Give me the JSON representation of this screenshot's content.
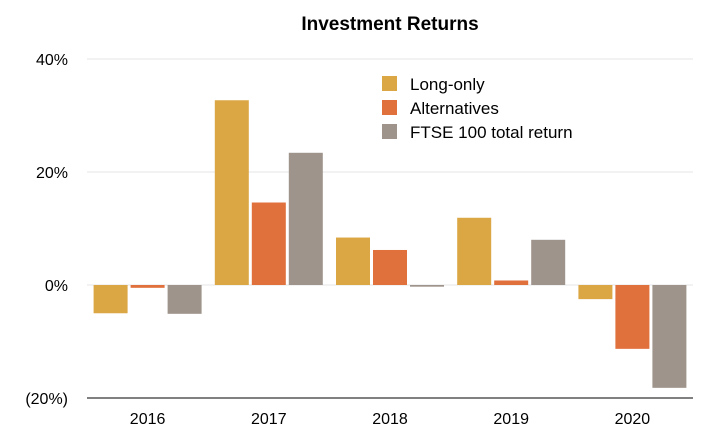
{
  "chart_data": {
    "type": "bar",
    "title": "Investment Returns",
    "xlabel": "",
    "ylabel": "",
    "categories": [
      "2016",
      "2017",
      "2018",
      "2019",
      "2020"
    ],
    "series": [
      {
        "name": "Long-only",
        "color": "#dba644",
        "values": [
          -5.0,
          32.7,
          8.4,
          11.9,
          -2.5
        ]
      },
      {
        "name": "Alternatives",
        "color": "#e0703c",
        "values": [
          -0.5,
          14.6,
          6.2,
          0.8,
          -11.3
        ]
      },
      {
        "name": "FTSE 100 total return",
        "color": "#9e948b",
        "values": [
          -5.1,
          23.4,
          -0.3,
          8.0,
          -18.2
        ]
      }
    ],
    "y_ticks": [
      {
        "value": 40,
        "label": "40%"
      },
      {
        "value": 20,
        "label": "20%"
      },
      {
        "value": 0,
        "label": "0%"
      },
      {
        "value": -20,
        "label": "(20%)"
      }
    ],
    "ylim": [
      -20,
      40
    ],
    "grid": true,
    "legend_position": "top-right"
  }
}
